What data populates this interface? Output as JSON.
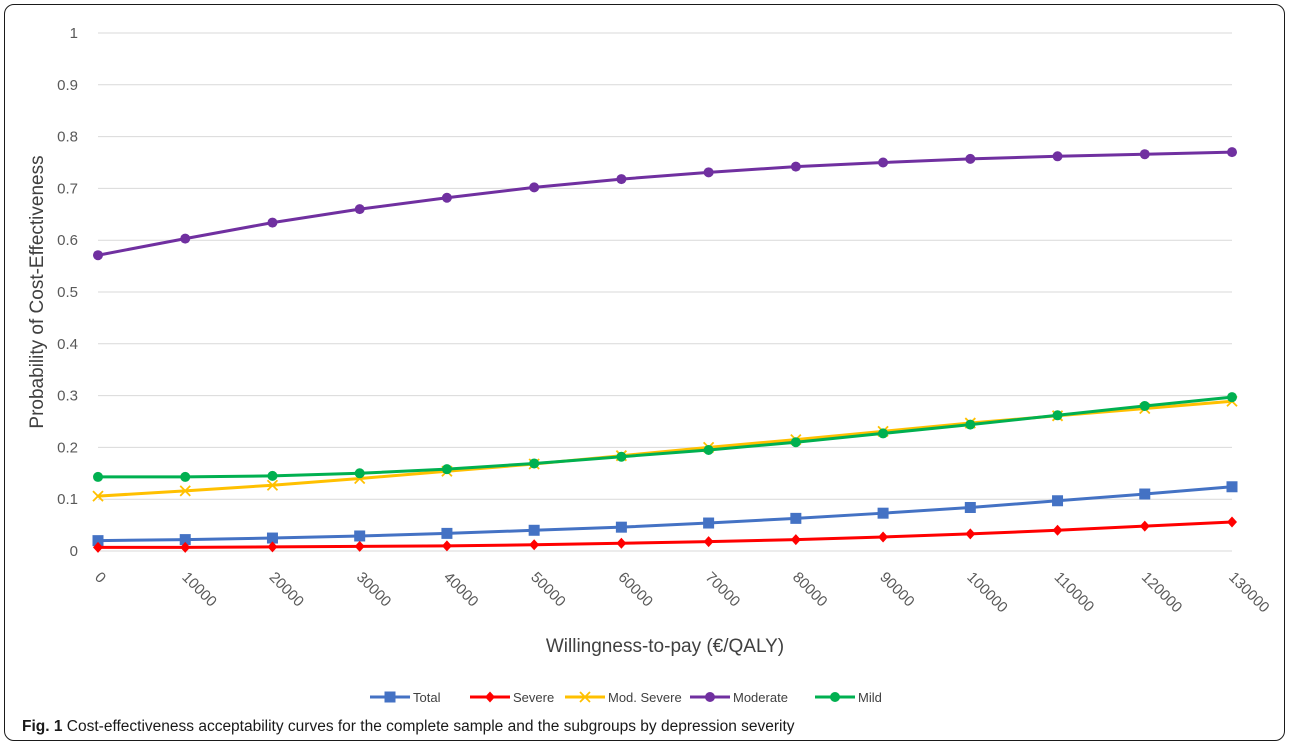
{
  "caption": {
    "label": "Fig. 1",
    "text": "Cost-effectiveness acceptability curves for the complete sample and the subgroups by depression severity"
  },
  "chart_data": {
    "type": "line",
    "xlabel": "Willingness-to-pay (€/QALY)",
    "ylabel": "Probability of Cost-Effectiveness",
    "ylim": [
      0,
      1
    ],
    "y_ticks": [
      "0",
      "0.1",
      "0.2",
      "0.3",
      "0.4",
      "0.5",
      "0.6",
      "0.7",
      "0.8",
      "0.9",
      "1"
    ],
    "grid": "horizontal",
    "legend_position": "bottom",
    "categories": [
      "0",
      "10000",
      "20000",
      "30000",
      "40000",
      "50000",
      "60000",
      "70000",
      "80000",
      "90000",
      "100000",
      "110000",
      "120000",
      "130000"
    ],
    "series": [
      {
        "name": "Total",
        "color": "#4472c4",
        "marker": "square",
        "values": [
          0.02,
          0.022,
          0.025,
          0.029,
          0.034,
          0.04,
          0.046,
          0.054,
          0.063,
          0.073,
          0.084,
          0.097,
          0.11,
          0.124
        ]
      },
      {
        "name": "Severe",
        "color": "#ff0000",
        "marker": "diamond",
        "values": [
          0.007,
          0.007,
          0.008,
          0.009,
          0.01,
          0.012,
          0.015,
          0.018,
          0.022,
          0.027,
          0.033,
          0.04,
          0.048,
          0.056
        ]
      },
      {
        "name": "Mod. Severe",
        "color": "#ffc000",
        "marker": "x",
        "values": [
          0.106,
          0.116,
          0.127,
          0.14,
          0.154,
          0.168,
          0.184,
          0.2,
          0.215,
          0.231,
          0.247,
          0.261,
          0.275,
          0.289
        ]
      },
      {
        "name": "Moderate",
        "color": "#7030a0",
        "marker": "circle",
        "values": [
          0.571,
          0.603,
          0.634,
          0.66,
          0.682,
          0.702,
          0.718,
          0.731,
          0.742,
          0.75,
          0.757,
          0.762,
          0.766,
          0.77
        ]
      },
      {
        "name": "Mild",
        "color": "#00b050",
        "marker": "circle",
        "values": [
          0.143,
          0.143,
          0.145,
          0.15,
          0.158,
          0.169,
          0.182,
          0.195,
          0.21,
          0.227,
          0.244,
          0.262,
          0.28,
          0.297
        ]
      }
    ]
  }
}
